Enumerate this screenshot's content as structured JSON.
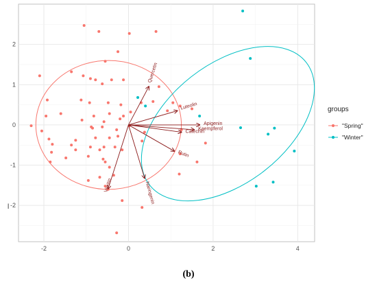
{
  "caption": "(b)",
  "chart_data": {
    "type": "scatter",
    "title": "",
    "xlabel": "",
    "ylabel": "l",
    "xlim": [
      -2.6,
      4.4
    ],
    "ylim": [
      -2.9,
      3.0
    ],
    "x_ticks": [
      -2,
      0,
      2,
      4
    ],
    "y_ticks": [
      -2,
      -1,
      0,
      1,
      2
    ],
    "grid": true,
    "legend": {
      "title": "groups",
      "position": "right",
      "entries": [
        {
          "label": "\"Spring\"",
          "color": "#F8766D"
        },
        {
          "label": "\"Winter\"",
          "color": "#00BFC4"
        }
      ]
    },
    "series": [
      {
        "name": "\"Spring\"",
        "color": "#F8766D",
        "points": [
          [
            -1.05,
            2.47
          ],
          [
            -0.7,
            2.32
          ],
          [
            0.02,
            2.27
          ],
          [
            0.65,
            2.32
          ],
          [
            -0.25,
            1.82
          ],
          [
            -0.55,
            1.58
          ],
          [
            -2.1,
            1.22
          ],
          [
            -1.35,
            1.32
          ],
          [
            -1.07,
            1.22
          ],
          [
            -0.9,
            1.15
          ],
          [
            -0.78,
            1.12
          ],
          [
            -0.62,
            1.02
          ],
          [
            -0.12,
            1.12
          ],
          [
            0.72,
            0.95
          ],
          [
            -0.4,
            1.12
          ],
          [
            0.58,
            0.58
          ],
          [
            1.05,
            0.55
          ],
          [
            1.22,
            0.47
          ],
          [
            0.92,
            0.35
          ],
          [
            1.5,
            0.4
          ],
          [
            -1.92,
            0.62
          ],
          [
            -1.12,
            0.62
          ],
          [
            -0.92,
            0.55
          ],
          [
            -0.48,
            0.55
          ],
          [
            -0.18,
            0.5
          ],
          [
            0.3,
            0.55
          ],
          [
            -1.6,
            0.28
          ],
          [
            -0.82,
            0.22
          ],
          [
            -0.45,
            0.28
          ],
          [
            -0.12,
            0.22
          ],
          [
            0.05,
            0.32
          ],
          [
            -1.95,
            0.22
          ],
          [
            -1.1,
            0.12
          ],
          [
            -0.58,
            0.08
          ],
          [
            -0.2,
            0.15
          ],
          [
            -2.3,
            -0.02
          ],
          [
            -0.88,
            -0.05
          ],
          [
            -0.62,
            -0.05
          ],
          [
            -0.28,
            -0.12
          ],
          [
            0.02,
            -0.02
          ],
          [
            -2.05,
            -0.15
          ],
          [
            -0.85,
            -0.08
          ],
          [
            -1.88,
            -0.35
          ],
          [
            -1.25,
            -0.38
          ],
          [
            -0.78,
            -0.32
          ],
          [
            -0.45,
            -0.32
          ],
          [
            -0.25,
            -0.28
          ],
          [
            -1.8,
            -0.48
          ],
          [
            -1.35,
            -0.5
          ],
          [
            -0.9,
            -0.55
          ],
          [
            -0.58,
            -0.55
          ],
          [
            -0.32,
            -0.55
          ],
          [
            -1.82,
            -0.68
          ],
          [
            -1.25,
            -0.62
          ],
          [
            -0.68,
            -0.62
          ],
          [
            -0.15,
            -0.62
          ],
          [
            -1.48,
            -0.82
          ],
          [
            -0.95,
            -0.78
          ],
          [
            -0.6,
            -0.85
          ],
          [
            -1.85,
            -0.92
          ],
          [
            -0.55,
            -0.92
          ],
          [
            -0.45,
            -1.05
          ],
          [
            -0.35,
            -1.25
          ],
          [
            -0.68,
            -1.3
          ],
          [
            -0.95,
            -1.38
          ],
          [
            -0.55,
            -1.52
          ],
          [
            -0.48,
            -1.6
          ],
          [
            1.62,
            -0.92
          ],
          [
            1.25,
            -0.12
          ],
          [
            1.22,
            -0.72
          ],
          [
            1.82,
            -0.45
          ],
          [
            0.32,
            -0.4
          ],
          [
            0.38,
            -0.18
          ],
          [
            1.2,
            -1.22
          ],
          [
            -0.15,
            -1.88
          ],
          [
            0.32,
            -2.05
          ],
          [
            -0.28,
            -2.68
          ]
        ]
      },
      {
        "name": "\"Winter\"",
        "color": "#00BFC4",
        "points": [
          [
            2.7,
            2.83
          ],
          [
            2.88,
            1.65
          ],
          [
            0.22,
            0.68
          ],
          [
            0.4,
            0.47
          ],
          [
            1.68,
            0.22
          ],
          [
            2.65,
            -0.07
          ],
          [
            3.45,
            -0.08
          ],
          [
            3.3,
            -0.23
          ],
          [
            3.92,
            -0.65
          ],
          [
            3.02,
            -1.52
          ],
          [
            3.42,
            -1.42
          ]
        ]
      }
    ],
    "ellipses": [
      {
        "group": "\"Spring\"",
        "color": "#F8766D",
        "cx": -0.47,
        "cy": 0.0,
        "rx": 1.72,
        "ry": 1.6,
        "angle_deg": 0
      },
      {
        "group": "\"Winter\"",
        "color": "#00BFC4",
        "cx": 2.35,
        "cy": 0.03,
        "rx": 2.35,
        "ry": 1.48,
        "angle_deg": -38
      }
    ],
    "vectors": [
      {
        "label": "Quercetin",
        "x": 0.48,
        "y": 0.95,
        "label_angle": -72
      },
      {
        "label": "Luteolin",
        "x": 1.15,
        "y": 0.35,
        "label_angle": -16
      },
      {
        "label": "Apigenin",
        "x": 1.68,
        "y": 0.0,
        "label_angle": 0
      },
      {
        "label": "Kaempferol",
        "x": 1.55,
        "y": -0.12,
        "label_angle": 0
      },
      {
        "label": "Catechin",
        "x": 1.25,
        "y": -0.18,
        "label_angle": 0
      },
      {
        "label": "Rutin",
        "x": 1.08,
        "y": -0.65,
        "label_angle": 22
      },
      {
        "label": "Naringenin",
        "x": 0.38,
        "y": -1.32,
        "label_angle": 75
      },
      {
        "label": "Vexitin",
        "x": -0.48,
        "y": -1.58,
        "label_angle": -72
      }
    ]
  }
}
